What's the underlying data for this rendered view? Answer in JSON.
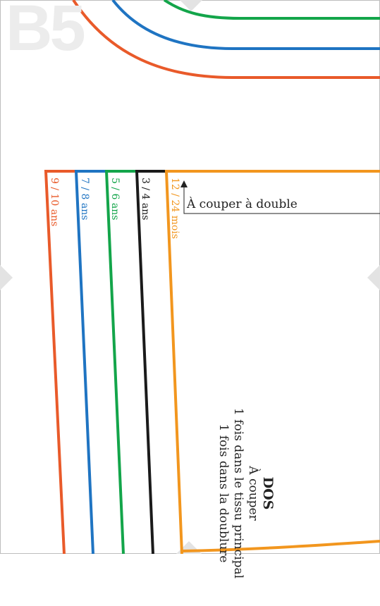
{
  "page_label": "B5",
  "sizes": [
    {
      "label": "9 / 10 ans",
      "color": "#e95a2a"
    },
    {
      "label": "7 / 8 ans",
      "color": "#1f74c2"
    },
    {
      "label": "5 / 6 ans",
      "color": "#13a54a"
    },
    {
      "label": "3 / 4 ans",
      "color": "#1a1a1a"
    },
    {
      "label": "12 / 24 mois",
      "color": "#f2961e"
    }
  ],
  "fold_instruction": "À couper à double",
  "piece": {
    "title": "DOS",
    "cut_heading": "À couper",
    "cut_main": "1 fois dans le tissu principal",
    "cut_lining": "1 fois dans la doublure"
  },
  "colors": {
    "background": "#ffffff",
    "marker": "#e3e3e3",
    "watermark": "#ececec",
    "text": "#222222"
  }
}
